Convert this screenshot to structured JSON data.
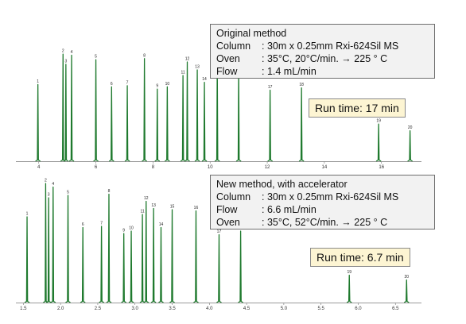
{
  "chart_data": [
    {
      "type": "line",
      "title": "",
      "info_box": {
        "title": "Original method",
        "rows": [
          {
            "key": "Column",
            "value": ": 30m x 0.25mm Rxi-624Sil MS"
          },
          {
            "key": "Oven",
            "value": ": 35°C,  20°C/min. → 225 ° C"
          },
          {
            "key": "Flow",
            "value": ": 1.4 mL/min"
          }
        ]
      },
      "run_time": "Run time: 17 min",
      "xlim": [
        3.2,
        17.4
      ],
      "ticks": [
        "4",
        "6",
        "8",
        "10",
        "12",
        "14",
        "16"
      ],
      "tick_values": [
        4,
        6,
        8,
        10,
        12,
        14,
        16
      ],
      "ylim": [
        0,
        1
      ],
      "peaks": [
        {
          "label": "1",
          "x": 3.97,
          "y": 0.68
        },
        {
          "label": "2",
          "x": 4.85,
          "y": 0.95
        },
        {
          "label": "3",
          "x": 4.95,
          "y": 0.86
        },
        {
          "label": "4",
          "x": 5.15,
          "y": 0.94
        },
        {
          "label": "5",
          "x": 6.0,
          "y": 0.9
        },
        {
          "label": "6",
          "x": 6.55,
          "y": 0.66
        },
        {
          "label": "7",
          "x": 7.1,
          "y": 0.67
        },
        {
          "label": "8",
          "x": 7.7,
          "y": 0.91
        },
        {
          "label": "9",
          "x": 8.15,
          "y": 0.64
        },
        {
          "label": "10",
          "x": 8.5,
          "y": 0.66
        },
        {
          "label": "11",
          "x": 9.05,
          "y": 0.76
        },
        {
          "label": "12",
          "x": 9.2,
          "y": 0.88
        },
        {
          "label": "13",
          "x": 9.55,
          "y": 0.81
        },
        {
          "label": "14",
          "x": 9.8,
          "y": 0.7
        },
        {
          "label": "15",
          "x": 10.25,
          "y": 0.88
        },
        {
          "label": "16",
          "x": 11.0,
          "y": 0.83
        },
        {
          "label": "17",
          "x": 12.1,
          "y": 0.63
        },
        {
          "label": "18",
          "x": 13.2,
          "y": 0.65
        },
        {
          "label": "19",
          "x": 15.9,
          "y": 0.33
        },
        {
          "label": "20",
          "x": 17.0,
          "y": 0.27
        }
      ]
    },
    {
      "type": "line",
      "title": "",
      "info_box": {
        "title": "New method, with accelerator",
        "rows": [
          {
            "key": "Column",
            "value": ": 30m x 0.25mm Rxi-624Sil MS"
          },
          {
            "key": "Flow",
            "value": ": 6.6 mL/min"
          },
          {
            "key": "Oven",
            "value": ": 35°C,  52°C/min. → 225 ° C"
          }
        ]
      },
      "run_time": "Run time: 6.7 min",
      "xlim": [
        1.4,
        6.85
      ],
      "ticks": [
        "1.5",
        "2.0",
        "2.5",
        "3.0",
        "3.5",
        "4.0",
        "4.5",
        "5.0",
        "5.5",
        "6.0",
        "6.5"
      ],
      "tick_values": [
        1.5,
        2.0,
        2.5,
        3.0,
        3.5,
        4.0,
        4.5,
        5.0,
        5.5,
        6.0,
        6.5
      ],
      "ylim": [
        0,
        1
      ],
      "peaks": [
        {
          "label": "1",
          "x": 1.55,
          "y": 0.72
        },
        {
          "label": "2",
          "x": 1.8,
          "y": 1.0
        },
        {
          "label": "3",
          "x": 1.84,
          "y": 0.88
        },
        {
          "label": "4",
          "x": 1.9,
          "y": 0.97
        },
        {
          "label": "5",
          "x": 2.1,
          "y": 0.9
        },
        {
          "label": "6",
          "x": 2.3,
          "y": 0.63
        },
        {
          "label": "7",
          "x": 2.55,
          "y": 0.64
        },
        {
          "label": "8",
          "x": 2.65,
          "y": 0.91
        },
        {
          "label": "9",
          "x": 2.85,
          "y": 0.58
        },
        {
          "label": "10",
          "x": 2.95,
          "y": 0.6
        },
        {
          "label": "11",
          "x": 3.1,
          "y": 0.74
        },
        {
          "label": "12",
          "x": 3.15,
          "y": 0.85
        },
        {
          "label": "13",
          "x": 3.25,
          "y": 0.79
        },
        {
          "label": "14",
          "x": 3.35,
          "y": 0.63
        },
        {
          "label": "15",
          "x": 3.5,
          "y": 0.78
        },
        {
          "label": "16",
          "x": 3.82,
          "y": 0.77
        },
        {
          "label": "17",
          "x": 4.13,
          "y": 0.57
        },
        {
          "label": "18",
          "x": 4.42,
          "y": 0.6
        },
        {
          "label": "19",
          "x": 5.88,
          "y": 0.23
        },
        {
          "label": "20",
          "x": 6.65,
          "y": 0.19
        }
      ]
    }
  ],
  "colors": {
    "peak_stroke": "#1f7a2e",
    "axis": "#777777",
    "info_box_bg": "#f2f2f2",
    "run_time_bg": "#fdf5d3"
  }
}
